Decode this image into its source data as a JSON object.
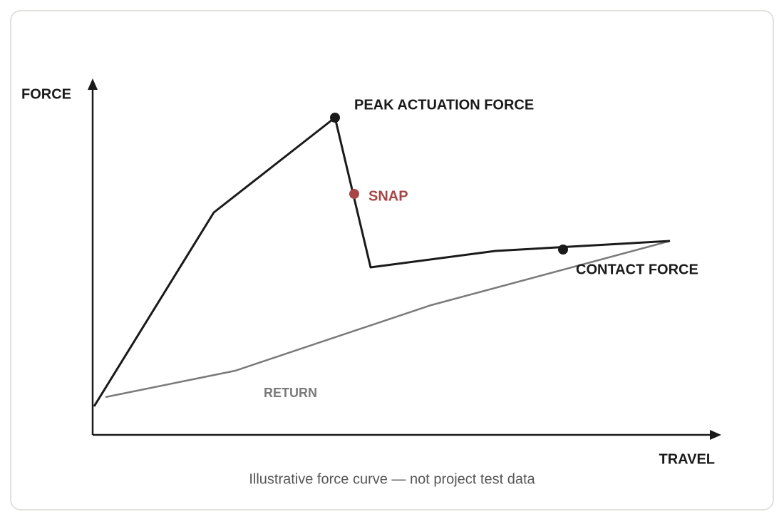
{
  "axes": {
    "y_label": "FORCE",
    "x_label": "TRAVEL"
  },
  "annotations": {
    "peak": "PEAK ACTUATION FORCE",
    "snap": "SNAP",
    "contact": "CONTACT FORCE",
    "return": "RETURN"
  },
  "caption": "Illustrative force curve — not project test data"
}
